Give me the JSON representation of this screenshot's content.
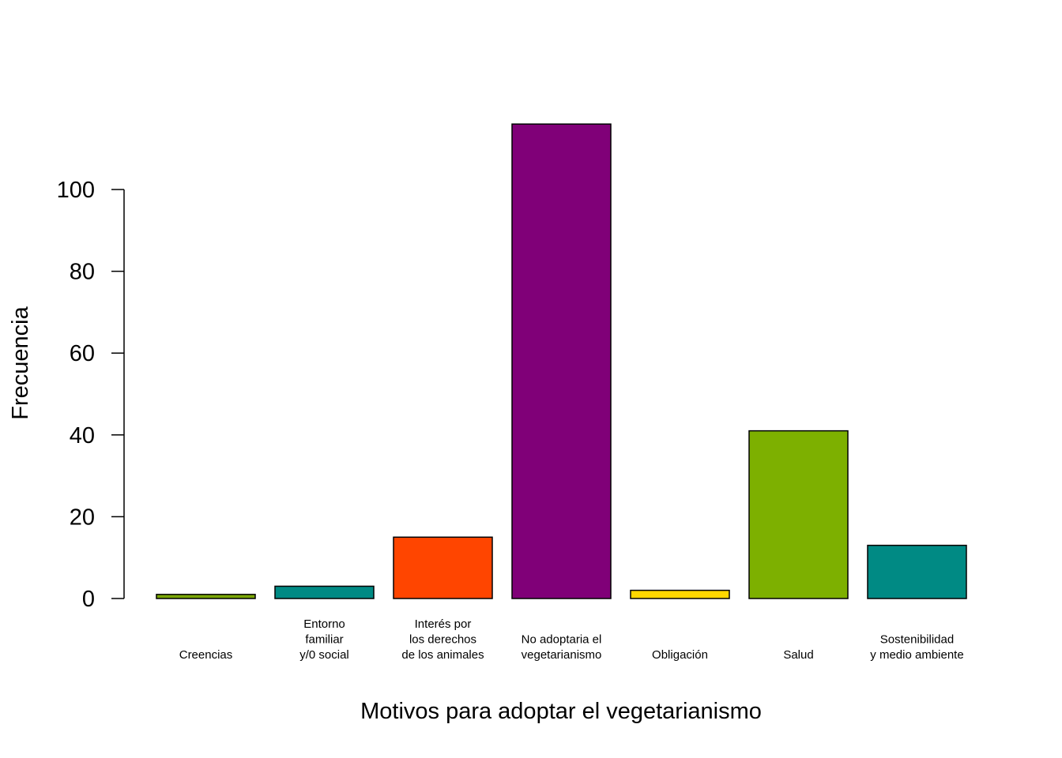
{
  "chart_data": {
    "type": "bar",
    "xlabel": "Motivos para adoptar el vegetarianismo",
    "ylabel": "Frecuencia",
    "ylim": [
      0,
      100
    ],
    "yticks": [
      0,
      20,
      40,
      60,
      80,
      100
    ],
    "grid": false,
    "categories": [
      {
        "lines": [
          "Creencias"
        ],
        "value": 1,
        "color": "#7aa607"
      },
      {
        "lines": [
          "Entorno",
          "familiar",
          "y/0 social"
        ],
        "value": 3,
        "color": "#008a84"
      },
      {
        "lines": [
          "Interés por",
          "los derechos",
          "de los animales"
        ],
        "value": 15,
        "color": "#ff4500"
      },
      {
        "lines": [
          "No adoptaria el",
          "vegetarianismo"
        ],
        "value": 116,
        "color": "#800078"
      },
      {
        "lines": [
          "Obligación"
        ],
        "value": 2,
        "color": "#ffd700"
      },
      {
        "lines": [
          "Salud"
        ],
        "value": 41,
        "color": "#7db000"
      },
      {
        "lines": [
          "Sostenibilidad",
          "y medio ambiente"
        ],
        "value": 13,
        "color": "#008a84"
      }
    ]
  }
}
